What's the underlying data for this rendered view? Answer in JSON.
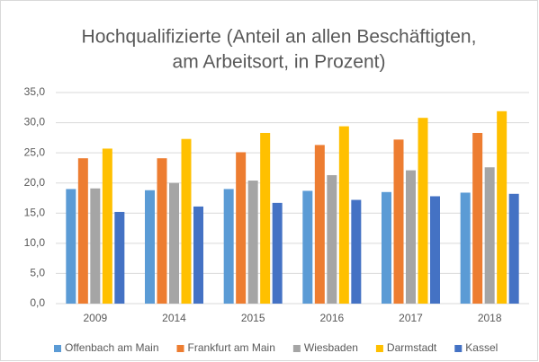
{
  "chart_data": {
    "type": "bar",
    "title": [
      "Hochqualifizierte  (Anteil an allen Beschäftigten,",
      "am Arbeitsort, in Prozent)"
    ],
    "categories": [
      "2009",
      "2014",
      "2015",
      "2016",
      "2017",
      "2018"
    ],
    "series": [
      {
        "name": "Offenbach am Main",
        "color": "#5b9bd5",
        "values": [
          19.0,
          18.8,
          19.0,
          18.7,
          18.5,
          18.4
        ]
      },
      {
        "name": "Frankfurt am Main",
        "color": "#ed7d31",
        "values": [
          24.1,
          24.1,
          25.1,
          26.3,
          27.2,
          28.3
        ]
      },
      {
        "name": "Wiesbaden",
        "color": "#a5a5a5",
        "values": [
          19.1,
          20.0,
          20.4,
          21.3,
          22.1,
          22.6
        ]
      },
      {
        "name": "Darmstadt",
        "color": "#ffc000",
        "values": [
          25.7,
          27.3,
          28.3,
          29.4,
          30.8,
          31.9
        ]
      },
      {
        "name": "Kassel",
        "color": "#4472c4",
        "values": [
          15.2,
          16.1,
          16.7,
          17.2,
          17.8,
          18.2
        ]
      }
    ],
    "ylim": [
      0,
      35
    ],
    "yticks": [
      {
        "value": 0,
        "label": "0,0"
      },
      {
        "value": 5,
        "label": "5,0"
      },
      {
        "value": 10,
        "label": "10,0"
      },
      {
        "value": 15,
        "label": "15,0"
      },
      {
        "value": 20,
        "label": "20,0"
      },
      {
        "value": 25,
        "label": "25,0"
      },
      {
        "value": 30,
        "label": "30,0"
      },
      {
        "value": 35,
        "label": "35,0"
      }
    ],
    "grid": true,
    "legend": "bottom"
  }
}
